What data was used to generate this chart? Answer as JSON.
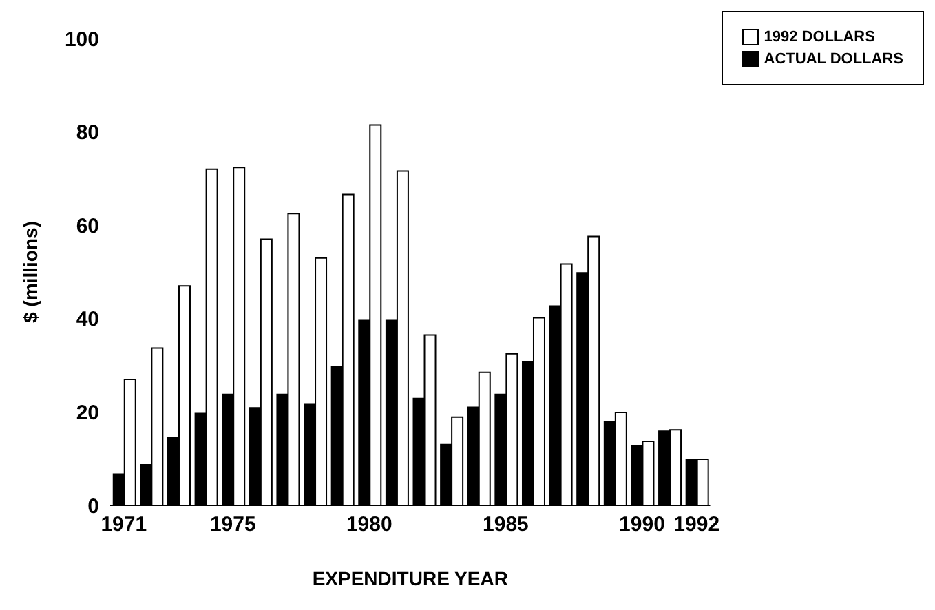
{
  "chart_data": {
    "type": "bar",
    "xlabel": "EXPENDITURE YEAR",
    "ylabel": "$ (millions)",
    "categories": [
      "1971",
      null,
      null,
      null,
      "1975",
      null,
      null,
      null,
      null,
      "1980",
      null,
      null,
      null,
      null,
      "1985",
      null,
      null,
      null,
      null,
      "1990",
      null,
      "1992"
    ],
    "series": [
      {
        "name": "ACTUAL DOLLARS",
        "color": "#000000",
        "values": [
          6.7,
          8.7,
          14.6,
          19.7,
          23.8,
          20.9,
          23.8,
          21.6,
          29.7,
          39.6,
          39.6,
          22.9,
          13,
          21,
          23.8,
          30.7,
          42.7,
          49.8,
          18,
          12.7,
          15.9,
          9.9
        ]
      },
      {
        "name": "1992 DOLLARS",
        "color": "#ffffff",
        "values": [
          27,
          33.7,
          47,
          72,
          72.4,
          57,
          62.5,
          53,
          66.6,
          81.5,
          71.6,
          36.5,
          18.9,
          28.5,
          32.5,
          40.2,
          51.7,
          57.6,
          19.9,
          13.7,
          16.2,
          9.9
        ]
      }
    ],
    "ylim": [
      0,
      100
    ],
    "yticks": [
      0,
      20,
      40,
      60,
      80,
      100
    ],
    "grid": false,
    "legend": "top right"
  }
}
